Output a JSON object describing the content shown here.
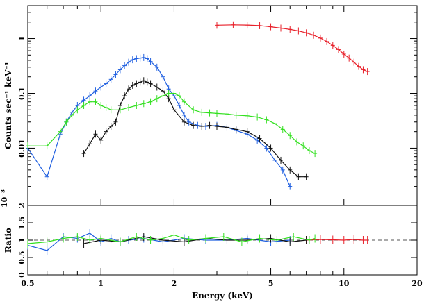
{
  "chart_data": [
    {
      "type": "line",
      "ylabel": "Counts sec⁻¹ keV⁻¹",
      "xscale": "log",
      "yscale": "log",
      "xlim": [
        0.5,
        20
      ],
      "ylim": [
        0.0009,
        4
      ],
      "yticks": [
        {
          "value": 1,
          "label": "1"
        },
        {
          "value": 0.1,
          "label": "0.1"
        },
        {
          "value": 0.01,
          "label": "0.01"
        }
      ],
      "corner_label": "10⁻³",
      "grid": false,
      "legend": "none",
      "series": [
        {
          "color": "#e8202a",
          "style": "step-errorbar",
          "x": [
            3.0,
            3.5,
            4.0,
            4.5,
            5.0,
            5.5,
            6.0,
            6.5,
            7.0,
            7.5,
            8.0,
            8.5,
            9.0,
            9.5,
            10.0,
            10.5,
            11.0,
            11.5,
            12.0,
            12.5
          ],
          "y": [
            1.75,
            1.78,
            1.76,
            1.72,
            1.64,
            1.55,
            1.47,
            1.38,
            1.27,
            1.15,
            1.02,
            0.88,
            0.75,
            0.63,
            0.52,
            0.44,
            0.37,
            0.31,
            0.27,
            0.25
          ]
        },
        {
          "color": "#1f5fe0",
          "style": "errorbar",
          "x": [
            0.5,
            0.6,
            0.68,
            0.72,
            0.76,
            0.8,
            0.85,
            0.9,
            0.95,
            1.0,
            1.05,
            1.1,
            1.15,
            1.2,
            1.25,
            1.3,
            1.35,
            1.4,
            1.45,
            1.5,
            1.55,
            1.6,
            1.7,
            1.8,
            1.9,
            2.0,
            2.1,
            2.2,
            2.3,
            2.5,
            2.7,
            3.0,
            3.3,
            3.6,
            4.0,
            4.4,
            4.8,
            5.2,
            5.6,
            6.0
          ],
          "y": [
            0.01,
            0.003,
            0.018,
            0.03,
            0.045,
            0.06,
            0.075,
            0.09,
            0.11,
            0.13,
            0.15,
            0.18,
            0.22,
            0.27,
            0.32,
            0.37,
            0.41,
            0.43,
            0.44,
            0.45,
            0.43,
            0.38,
            0.3,
            0.2,
            0.12,
            0.09,
            0.06,
            0.04,
            0.03,
            0.026,
            0.025,
            0.026,
            0.024,
            0.021,
            0.018,
            0.014,
            0.01,
            0.006,
            0.004,
            0.002
          ]
        },
        {
          "color": "#111111",
          "style": "errorbar",
          "x": [
            0.85,
            0.9,
            0.95,
            1.0,
            1.05,
            1.1,
            1.15,
            1.2,
            1.25,
            1.3,
            1.35,
            1.4,
            1.45,
            1.5,
            1.55,
            1.6,
            1.7,
            1.8,
            1.9,
            2.0,
            2.2,
            2.4,
            2.6,
            2.8,
            3.0,
            3.3,
            3.6,
            4.0,
            4.5,
            5.0,
            5.5,
            6.0,
            6.5,
            7.0
          ],
          "y": [
            0.008,
            0.012,
            0.018,
            0.014,
            0.02,
            0.025,
            0.03,
            0.06,
            0.09,
            0.12,
            0.14,
            0.15,
            0.16,
            0.17,
            0.16,
            0.15,
            0.13,
            0.11,
            0.08,
            0.05,
            0.03,
            0.026,
            0.025,
            0.026,
            0.025,
            0.024,
            0.022,
            0.02,
            0.015,
            0.01,
            0.006,
            0.004,
            0.003,
            0.003
          ]
        },
        {
          "color": "#33e020",
          "style": "errorbar",
          "x": [
            0.5,
            0.6,
            0.68,
            0.72,
            0.76,
            0.8,
            0.85,
            0.9,
            0.95,
            1.0,
            1.05,
            1.1,
            1.2,
            1.3,
            1.4,
            1.5,
            1.6,
            1.7,
            1.8,
            1.9,
            2.0,
            2.1,
            2.2,
            2.4,
            2.6,
            2.8,
            3.0,
            3.3,
            3.6,
            4.0,
            4.4,
            4.8,
            5.2,
            5.6,
            6.0,
            6.4,
            6.8,
            7.2,
            7.6
          ],
          "y": [
            0.011,
            0.011,
            0.02,
            0.03,
            0.04,
            0.05,
            0.06,
            0.07,
            0.07,
            0.06,
            0.055,
            0.05,
            0.05,
            0.055,
            0.06,
            0.065,
            0.07,
            0.08,
            0.09,
            0.1,
            0.1,
            0.09,
            0.07,
            0.05,
            0.045,
            0.044,
            0.043,
            0.042,
            0.04,
            0.039,
            0.037,
            0.033,
            0.028,
            0.022,
            0.017,
            0.013,
            0.011,
            0.009,
            0.008
          ]
        }
      ]
    },
    {
      "type": "line",
      "xlabel": "Energy (keV)",
      "ylabel": "Ratio",
      "xscale": "log",
      "xlim": [
        0.5,
        20
      ],
      "ylim": [
        0,
        2
      ],
      "xticks": [
        {
          "value": 0.5,
          "label": "0.5"
        },
        {
          "value": 1,
          "label": "1"
        },
        {
          "value": 2,
          "label": "2"
        },
        {
          "value": 5,
          "label": "5"
        },
        {
          "value": 10,
          "label": "10"
        },
        {
          "value": 20,
          "label": "20"
        }
      ],
      "yticks": [
        {
          "value": 0,
          "label": "0"
        },
        {
          "value": 0.5,
          "label": "0.5"
        },
        {
          "value": 1,
          "label": "1"
        },
        {
          "value": 1.5,
          "label": "1.5"
        },
        {
          "value": 2,
          "label": "2"
        }
      ],
      "reference_line": 1,
      "series": [
        {
          "color": "#e8202a",
          "x": [
            7.0,
            8.0,
            9.0,
            10.0,
            11.0,
            12.0,
            12.5
          ],
          "y": [
            1.0,
            1.02,
            1.01,
            1.0,
            1.02,
            1.0,
            1.0
          ]
        },
        {
          "color": "#1f5fe0",
          "x": [
            0.5,
            0.6,
            0.7,
            0.8,
            0.9,
            1.0,
            1.1,
            1.2,
            1.3,
            1.5,
            1.8,
            2.2,
            2.7,
            3.3,
            4.0,
            5.0,
            6.0
          ],
          "y": [
            0.85,
            0.7,
            1.1,
            1.05,
            1.2,
            0.95,
            1.05,
            0.95,
            1.0,
            1.05,
            0.95,
            1.05,
            1.0,
            1.0,
            1.05,
            0.95,
            1.0
          ]
        },
        {
          "color": "#111111",
          "x": [
            0.85,
            1.0,
            1.2,
            1.5,
            1.8,
            2.2,
            2.7,
            3.3,
            4.0,
            5.0,
            6.0,
            7.0
          ],
          "y": [
            0.9,
            1.0,
            0.95,
            1.1,
            1.0,
            0.95,
            1.05,
            1.0,
            1.0,
            1.05,
            0.95,
            1.0
          ]
        },
        {
          "color": "#33e020",
          "x": [
            0.5,
            0.6,
            0.7,
            0.8,
            0.9,
            1.0,
            1.2,
            1.4,
            1.6,
            1.8,
            2.0,
            2.3,
            2.7,
            3.2,
            3.8,
            4.5,
            5.3,
            6.2,
            7.2,
            7.6
          ],
          "y": [
            0.9,
            0.95,
            1.05,
            1.1,
            1.0,
            1.05,
            0.95,
            1.1,
            1.0,
            1.05,
            1.15,
            1.0,
            1.05,
            1.1,
            0.95,
            1.05,
            1.0,
            1.1,
            1.0,
            1.05
          ]
        }
      ]
    }
  ]
}
